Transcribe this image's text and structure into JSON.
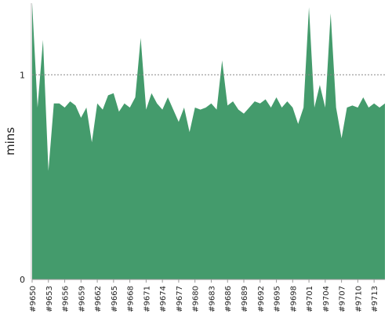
{
  "chart_data": {
    "type": "area",
    "ylabel": "mins",
    "xlabel": "",
    "title": "",
    "ylim": [
      0,
      1.35
    ],
    "yticks": [
      0,
      1
    ],
    "reference_line": 1,
    "fill_color": "#449b6c",
    "grid_color": "#888888",
    "x_tick_labels": [
      "#9650",
      "#9653",
      "#9656",
      "#9659",
      "#9662",
      "#9665",
      "#9668",
      "#9671",
      "#9674",
      "#9677",
      "#9680",
      "#9683",
      "#9686",
      "#9689",
      "#9692",
      "#9695",
      "#9698",
      "#9701",
      "#9704",
      "#9707",
      "#9710",
      "#9713"
    ],
    "x_first": 9650,
    "x_step": 3,
    "values": [
      1.35,
      0.84,
      1.17,
      0.53,
      0.86,
      0.86,
      0.84,
      0.87,
      0.85,
      0.79,
      0.84,
      0.67,
      0.86,
      0.83,
      0.9,
      0.91,
      0.82,
      0.86,
      0.84,
      0.89,
      1.18,
      0.83,
      0.91,
      0.86,
      0.83,
      0.89,
      0.83,
      0.77,
      0.84,
      0.72,
      0.84,
      0.83,
      0.84,
      0.86,
      0.83,
      1.07,
      0.85,
      0.87,
      0.83,
      0.81,
      0.84,
      0.87,
      0.86,
      0.88,
      0.84,
      0.89,
      0.84,
      0.87,
      0.84,
      0.76,
      0.84,
      1.33,
      0.84,
      0.95,
      0.84,
      1.3,
      0.84,
      0.69,
      0.84,
      0.85,
      0.84,
      0.89,
      0.84,
      0.86,
      0.84,
      0.86
    ]
  }
}
